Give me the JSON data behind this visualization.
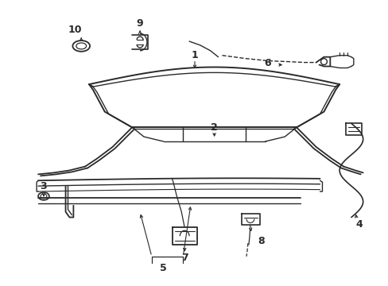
{
  "bg_color": "#ffffff",
  "line_color": "#2a2a2a",
  "lw": 1.1,
  "fig_width": 4.89,
  "fig_height": 3.6,
  "dpi": 100
}
